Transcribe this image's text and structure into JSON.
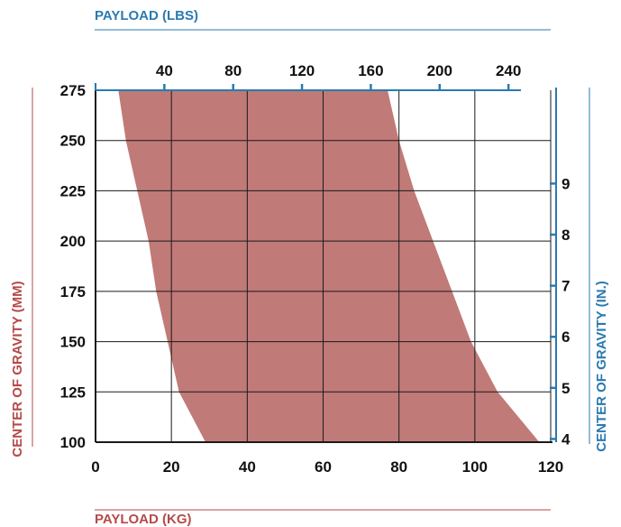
{
  "colors": {
    "band_fill": "#c07a77",
    "axis_blue": "#2a7ab0",
    "axis_red": "#b54a48",
    "grid": "#1a1a1a",
    "text": "#111111"
  },
  "chart_data": {
    "type": "area",
    "description_free": true,
    "bottom_axis": {
      "label": "PAYLOAD (KG)",
      "range": [
        0,
        120
      ],
      "ticks": [
        0,
        20,
        40,
        60,
        80,
        100,
        120
      ]
    },
    "left_axis": {
      "label": "CENTER OF GRAVITY (MM)",
      "range": [
        100,
        275
      ],
      "ticks": [
        100,
        125,
        150,
        175,
        200,
        225,
        250,
        275
      ]
    },
    "top_axis": {
      "label": "PAYLOAD (LBS)",
      "ticks": [
        40,
        80,
        120,
        160,
        200,
        240
      ]
    },
    "right_axis": {
      "label": "CENTER OF GRAVITY (IN.)",
      "ticks": [
        4,
        5,
        6,
        7,
        8,
        9
      ]
    },
    "grid": true,
    "band": {
      "left_boundary": [
        {
          "x": 6,
          "y": 275
        },
        {
          "x": 8,
          "y": 250
        },
        {
          "x": 11,
          "y": 225
        },
        {
          "x": 14,
          "y": 200
        },
        {
          "x": 16,
          "y": 175
        },
        {
          "x": 19,
          "y": 150
        },
        {
          "x": 22,
          "y": 125
        },
        {
          "x": 29,
          "y": 100
        }
      ],
      "right_boundary": [
        {
          "x": 77,
          "y": 275
        },
        {
          "x": 80,
          "y": 250
        },
        {
          "x": 84,
          "y": 225
        },
        {
          "x": 89,
          "y": 200
        },
        {
          "x": 94,
          "y": 175
        },
        {
          "x": 99,
          "y": 150
        },
        {
          "x": 106,
          "y": 125
        },
        {
          "x": 117,
          "y": 100
        }
      ]
    }
  }
}
